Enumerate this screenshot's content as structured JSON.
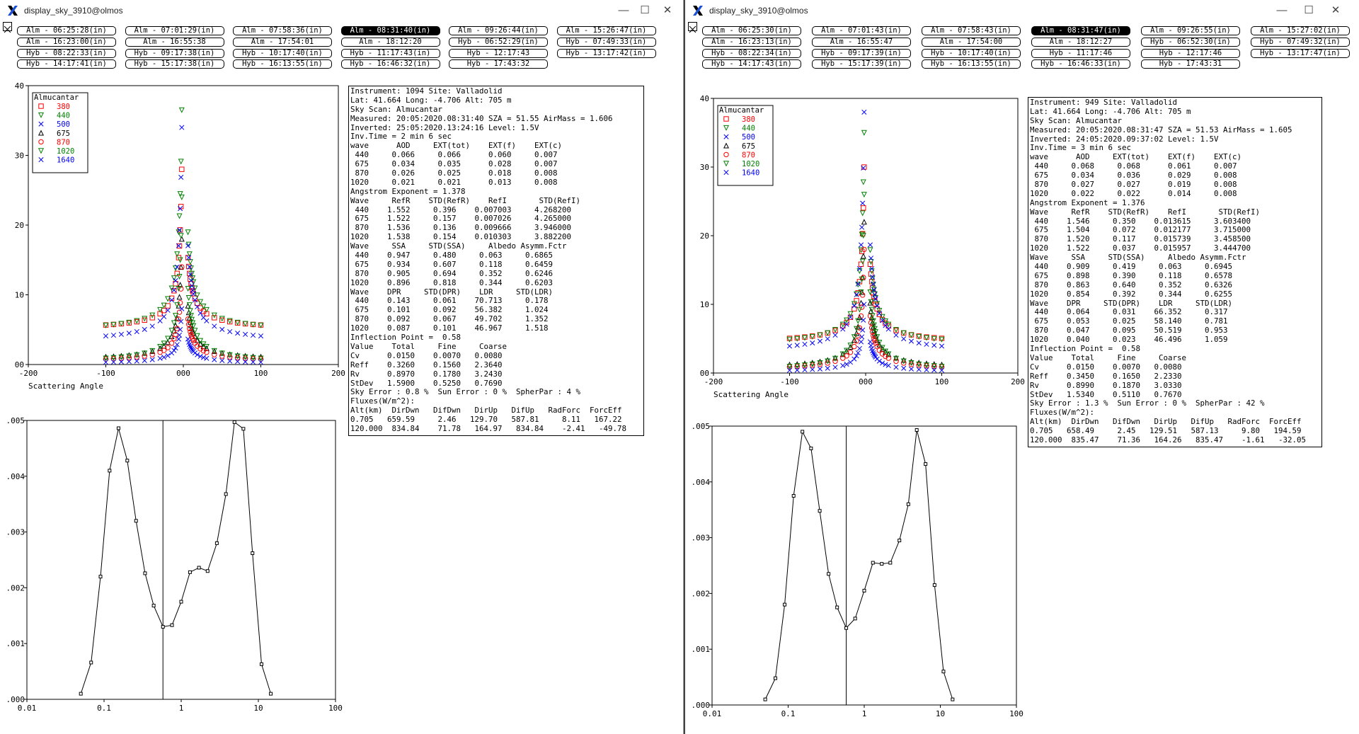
{
  "windows": [
    {
      "title": "display_sky_3910@olmos",
      "buttons": {
        "minimize": "—",
        "maximize": "☐",
        "close": "✕"
      },
      "scans": [
        "Alm - 06:25:28(in)",
        "Alm - 07:01:29(in)",
        "Alm - 07:58:36(in)",
        "Alm - 08:31:40(in)",
        "Alm - 09:26:44(in)",
        "Alm - 15:26:47(in)",
        "Alm - 16:23:00(in)",
        "Alm - 16:55:38",
        "Alm - 17:54:01",
        "Alm - 18:12:20",
        "Hyb - 06:52:29(in)",
        "Hyb - 07:49:33(in)",
        "Hyb - 08:22:33(in)",
        "Hyb - 09:17:38(in)",
        "Hyb - 10:17:40(in)",
        "Hyb - 11:17:43(in)",
        "Hyb - 12:17:43",
        "Hyb - 13:17:42(in)",
        "Hyb - 14:17:41(in)",
        "Hyb - 15:17:38(in)",
        "Hyb - 16:13:55(in)",
        "Hyb - 16:46:32(in)",
        "Hyb - 17:43:32"
      ],
      "active_scan_index": 3,
      "info_lines": [
        "Instrument: 1094 Site: Valladolid",
        "Lat: 41.664 Long: -4.706 Alt: 705 m",
        "Sky Scan: Almucantar",
        "Measured: 20:05:2020.08:31:40 SZA = 51.55 AirMass = 1.606",
        "Inverted: 25:05:2020.13:24:16 Level: 1.5V",
        "Inv.Time = 2 min 6 sec",
        "wave      AOD     EXT(tot)    EXT(f)    EXT(c)",
        " 440     0.066     0.066      0.060     0.007",
        " 675     0.034     0.035      0.028     0.007",
        " 870     0.026     0.025      0.018     0.008",
        "1020     0.021     0.021      0.013     0.008",
        "Angstrom Exponent = 1.378",
        "Wave     RefR    STD(RefR)    RefI       STD(RefI)",
        " 440    1.552     0.396    0.007003     4.268200",
        " 675    1.522     0.157    0.007026     4.265000",
        " 870    1.536     0.136    0.009666     3.946000",
        "1020    1.538     0.154    0.010303     3.882200",
        "Wave     SSA     STD(SSA)     Albedo Asymm.Fctr",
        " 440    0.947     0.480     0.063     0.6865",
        " 675    0.934     0.607     0.118     0.6459",
        " 870    0.905     0.694     0.352     0.6246",
        "1020    0.896     0.818     0.344     0.6203",
        "Wave    DPR     STD(DPR)    LDR     STD(LDR)",
        " 440    0.143     0.061    70.713     0.178",
        " 675    0.101     0.092    56.382     1.024",
        " 870    0.092     0.067    49.702     1.352",
        "1020    0.087     0.101    46.967     1.518",
        "Inflection Point =  0.58",
        "Value    Total     Fine     Coarse",
        "Cv      0.0150    0.0070   0.0080",
        "Reff    0.3260    0.1560   2.3640",
        "Rv      0.8970    0.1780   3.2430",
        "StDev   1.5900    0.5250   0.7690",
        "Sky Error : 0.8 %  Sun Error : 0 %  SpherPar : 4 %",
        "Fluxes(W/m^2):",
        "Alt(km)  DirDwn   DifDwn   DirUp   DifUp   RadForc  ForcEff",
        "0.705   659.59     2.46   129.70   587.81     8.11   167.22",
        "120.000  834.84    71.78   164.97   834.84    -2.41   -49.78"
      ],
      "sky_chart": {
        "type": "scatter",
        "legend_title": "Almucantar",
        "legend": [
          {
            "label": "380",
            "color": "#ff0000",
            "marker": "square"
          },
          {
            "label": "440",
            "color": "#008000",
            "marker": "triangle-down"
          },
          {
            "label": "500",
            "color": "#0000ff",
            "marker": "cross"
          },
          {
            "label": "675",
            "color": "#000000",
            "marker": "triangle-up"
          },
          {
            "label": "870",
            "color": "#ff0000",
            "marker": "circle"
          },
          {
            "label": "1020",
            "color": "#008000",
            "marker": "triangle-down"
          },
          {
            "label": "1640",
            "color": "#0000ff",
            "marker": "cross"
          }
        ],
        "xlabel": "Scattering Angle",
        "xlim": [
          -200,
          200
        ],
        "ylim": [
          0,
          40
        ],
        "xticks": [
          "-200",
          "-100",
          "000",
          "100",
          "200"
        ],
        "yticks": [
          "00",
          "10",
          "20",
          "30",
          "40"
        ],
        "peaks": [
          28,
          36.5,
          34,
          18,
          14,
          24,
          8
        ],
        "tails": [
          5,
          4.7,
          3.2,
          0.6,
          0.4,
          0.2,
          0.1
        ]
      },
      "size_chart": {
        "type": "line",
        "xlim": [
          0.01,
          100
        ],
        "ylim": [
          0,
          0.005
        ],
        "xticks": [
          "0.01",
          "0.1",
          "1",
          "10",
          "100"
        ],
        "yticks": [
          ".000",
          ".001",
          ".002",
          ".003",
          ".004",
          ".005"
        ],
        "inflection_x": 0.58,
        "x": [
          0.05,
          0.068,
          0.09,
          0.118,
          0.154,
          0.2,
          0.26,
          0.34,
          0.44,
          0.58,
          0.76,
          1.0,
          1.3,
          1.7,
          2.2,
          2.9,
          3.8,
          4.9,
          6.4,
          8.4,
          11.0,
          14.5
        ],
        "y": [
          0.0001,
          0.00066,
          0.0022,
          0.0041,
          0.00486,
          0.00428,
          0.0032,
          0.00226,
          0.00168,
          0.0013,
          0.00133,
          0.00175,
          0.00228,
          0.00236,
          0.0023,
          0.0028,
          0.00368,
          0.00497,
          0.00485,
          0.00262,
          0.00063,
          0.0001
        ]
      }
    },
    {
      "title": "display_sky_3910@olmos",
      "buttons": {
        "minimize": "—",
        "maximize": "☐",
        "close": "✕"
      },
      "scans": [
        "Alm - 06:25:30(in)",
        "Alm - 07:01:43(in)",
        "Alm - 07:58:43(in)",
        "Alm - 08:31:47(in)",
        "Alm - 09:26:55(in)",
        "Alm - 15:27:02(in)",
        "Alm - 16:23:13(in)",
        "Alm - 16:55:47",
        "Alm - 17:54:00",
        "Alm - 18:12:27",
        "Hyb - 06:52:30(in)",
        "Hyb - 07:49:32(in)",
        "Hyb - 08:22:34(in)",
        "Hyb - 09:17:39(in)",
        "Hyb - 10:17:40(in)",
        "Hyb - 11:17:46",
        "Hyb - 12:17:46",
        "Hyb - 13:17:47(in)",
        "Hyb - 14:17:43(in)",
        "Hyb - 15:17:39(in)",
        "Hyb - 16:13:55(in)",
        "Hyb - 16:46:33(in)",
        "Hyb - 17:43:31"
      ],
      "active_scan_index": 3,
      "info_lines": [
        "Instrument: 949 Site: Valladolid",
        "Lat: 41.664 Long: -4.706 Alt: 705 m",
        "Sky Scan: Almucantar",
        "Measured: 20:05:2020.08:31:47 SZA = 51.53 AirMass = 1.605",
        "Inverted: 24:05:2020.09:37:02 Level: 1.5V",
        "Inv.Time = 3 min 6 sec",
        "wave      AOD     EXT(tot)    EXT(f)    EXT(c)",
        " 440     0.068     0.068      0.061     0.007",
        " 675     0.034     0.036      0.029     0.008",
        " 870     0.027     0.027      0.019     0.008",
        "1020     0.022     0.022      0.014     0.008",
        "Angstrom Exponent = 1.376",
        "Wave     RefR    STD(RefR)    RefI       STD(RefI)",
        " 440    1.546     0.350    0.013615     3.603400",
        " 675    1.504     0.072    0.012177     3.715000",
        " 870    1.520     0.117    0.015739     3.458500",
        "1020    1.522     0.037    0.015957     3.444700",
        "Wave     SSA     STD(SSA)     Albedo Asymm.Fctr",
        " 440    0.909     0.419     0.063     0.6945",
        " 675    0.898     0.390     0.118     0.6578",
        " 870    0.863     0.640     0.352     0.6326",
        "1020    0.854     0.392     0.344     0.6255",
        "Wave    DPR     STD(DPR)    LDR     STD(LDR)",
        " 440    0.064     0.031    66.352     0.317",
        " 675    0.053     0.025    58.140     0.781",
        " 870    0.047     0.095    50.519     0.953",
        "1020    0.040     0.023    46.496     1.059",
        "Inflection Point =  0.58",
        "Value    Total     Fine     Coarse",
        "Cv      0.0150    0.0070   0.0080",
        "Reff    0.3450    0.1650   2.2330",
        "Rv      0.8990    0.1870   3.0330",
        "StDev   1.5340    0.5110   0.7670",
        "Sky Error : 1.3 %  Sun Error : 0 %  SpherPar : 42 %",
        "Fluxes(W/m^2):",
        "Alt(km)  DirDwn   DifDwn   DirUp   DifUp   RadForc  ForcEff",
        "0.705   658.49     2.45   129.51   587.13     9.80   194.59",
        "120.000  835.47    71.36   164.26   835.47    -1.61   -32.05"
      ],
      "sky_chart": {
        "type": "scatter",
        "legend_title": "Almucantar",
        "legend": [
          {
            "label": "380",
            "color": "#ff0000",
            "marker": "square"
          },
          {
            "label": "440",
            "color": "#008000",
            "marker": "triangle-down"
          },
          {
            "label": "500",
            "color": "#0000ff",
            "marker": "cross"
          },
          {
            "label": "675",
            "color": "#000000",
            "marker": "triangle-up"
          },
          {
            "label": "870",
            "color": "#ff0000",
            "marker": "circle"
          },
          {
            "label": "1020",
            "color": "#008000",
            "marker": "triangle-down"
          },
          {
            "label": "1640",
            "color": "#0000ff",
            "marker": "cross"
          }
        ],
        "xlabel": "Scattering Angle",
        "xlim": [
          -200,
          200
        ],
        "ylim": [
          0,
          40
        ],
        "xticks": [
          "-200",
          "-100",
          "000",
          "100",
          "200"
        ],
        "yticks": [
          "00",
          "10",
          "20",
          "30",
          "40"
        ],
        "peaks": [
          30,
          35,
          38,
          22,
          18,
          26,
          10
        ],
        "tails": [
          4.3,
          4.0,
          2.9,
          0.6,
          0.4,
          0.2,
          0.1
        ]
      },
      "size_chart": {
        "type": "line",
        "xlim": [
          0.01,
          100
        ],
        "ylim": [
          0,
          0.005
        ],
        "xticks": [
          "0.01",
          "0.1",
          "1",
          "10",
          "100"
        ],
        "yticks": [
          ".000",
          ".001",
          ".002",
          ".003",
          ".004",
          ".005"
        ],
        "inflection_x": 0.58,
        "x": [
          0.05,
          0.068,
          0.09,
          0.118,
          0.154,
          0.2,
          0.26,
          0.34,
          0.44,
          0.58,
          0.76,
          1.0,
          1.3,
          1.7,
          2.2,
          2.9,
          3.8,
          4.9,
          6.4,
          8.4,
          11.0,
          14.5
        ],
        "y": [
          0.0001,
          0.00048,
          0.0018,
          0.00375,
          0.0049,
          0.0046,
          0.00348,
          0.00235,
          0.00175,
          0.00138,
          0.00155,
          0.00205,
          0.00255,
          0.00253,
          0.00255,
          0.00295,
          0.0036,
          0.00493,
          0.00432,
          0.00215,
          0.0006,
          0.0001
        ]
      }
    }
  ]
}
